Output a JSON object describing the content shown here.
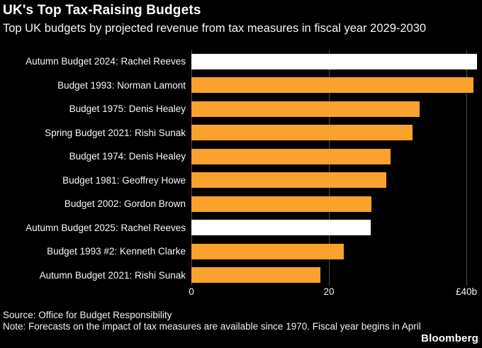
{
  "header": {
    "title": "UK's Top Tax-Raising Budgets",
    "subtitle": "Top UK budgets by projected revenue from tax measures in fiscal year 2029-2030"
  },
  "chart_data": {
    "type": "bar",
    "orientation": "horizontal",
    "title": "UK's Top Tax-Raising Budgets",
    "subtitle": "Top UK budgets by projected revenue from tax measures in fiscal year 2029-2030",
    "unit": "billion GBP",
    "xlim": [
      0,
      40
    ],
    "grid": true,
    "x_ticks": [
      {
        "value": 0,
        "label": "0"
      },
      {
        "value": 20,
        "label": "20"
      },
      {
        "value": 40,
        "label": "£40b"
      }
    ],
    "categories": [
      "Autumn Budget 2024: Rachel Reeves",
      "Budget 1993: Norman Lamont",
      "Budget 1975: Denis Healey",
      "Spring Budget 2021: Rishi Sunak",
      "Budget 1974: Denis Healey",
      "Budget 1981: Geoffrey Howe",
      "Budget 2002: Gordon Brown",
      "Autumn Budget 2025: Rachel Reeves",
      "Budget 1993 #2: Kenneth Clarke",
      "Autumn Budget 2021: Rishi Sunak"
    ],
    "values": [
      41.5,
      41.0,
      33.2,
      32.2,
      29.0,
      28.4,
      26.2,
      26.1,
      22.2,
      18.8
    ],
    "highlighted": [
      true,
      false,
      false,
      false,
      false,
      false,
      false,
      true,
      false,
      false
    ],
    "colors": {
      "bar": "#FAA22D",
      "highlight_bar": "#FFFFFF",
      "background": "#000000",
      "gridline": "#4E4E4E",
      "text": "#FFFFFF"
    }
  },
  "footer": {
    "source": "Source: Office for Budget Responsibility",
    "note": "Note: Forecasts on the impact of tax measures are available since 1970. Fiscal year begins in April",
    "brand": "Bloomberg"
  }
}
